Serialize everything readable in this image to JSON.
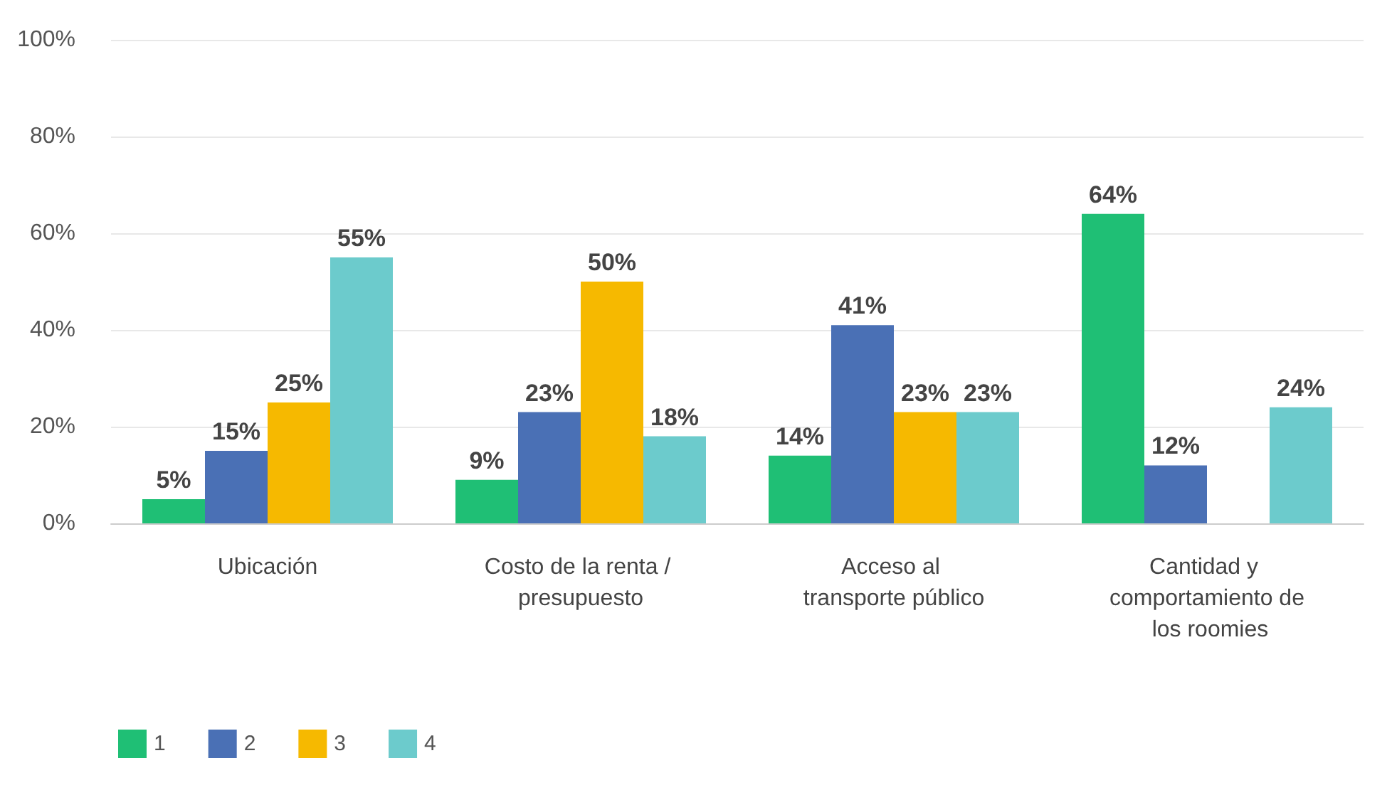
{
  "chart_data": {
    "type": "bar",
    "categories": [
      "Ubicación",
      "Costo de la renta / presupuesto",
      "Acceso al transporte público",
      "Cantidad y comportamiento de los roomies"
    ],
    "series": [
      {
        "name": "1",
        "color": "#1fbf75",
        "values": [
          5,
          9,
          14,
          64
        ],
        "value_labels": [
          "5%",
          "9%",
          "14%",
          "64%"
        ]
      },
      {
        "name": "2",
        "color": "#4a70b5",
        "values": [
          15,
          23,
          41,
          12
        ],
        "value_labels": [
          "15%",
          "23%",
          "41%",
          "12%"
        ]
      },
      {
        "name": "3",
        "color": "#f6b900",
        "values": [
          25,
          50,
          23,
          0
        ],
        "value_labels": [
          "25%",
          "50%",
          "23%",
          null
        ]
      },
      {
        "name": "4",
        "color": "#6ccbcc",
        "values": [
          55,
          18,
          23,
          24
        ],
        "value_labels": [
          "55%",
          "18%",
          "23%",
          "24%"
        ]
      }
    ],
    "ylim": [
      0,
      100
    ],
    "yticks": [
      {
        "value": 0,
        "label": "0%"
      },
      {
        "value": 20,
        "label": "20%"
      },
      {
        "value": 40,
        "label": "40%"
      },
      {
        "value": 60,
        "label": "60%"
      },
      {
        "value": 80,
        "label": "80%"
      },
      {
        "value": 100,
        "label": "100%"
      }
    ],
    "grid": "y",
    "legend": "bottom left"
  }
}
